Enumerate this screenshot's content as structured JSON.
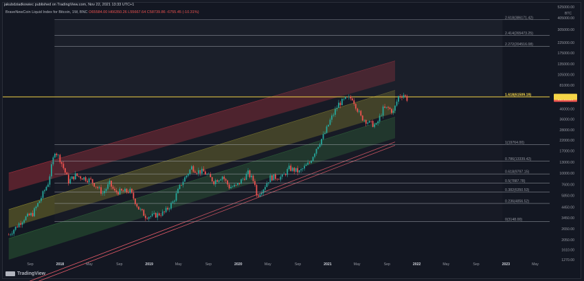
{
  "publisher": "jakubdziadkowiec published on TradingView.com, Nov 22, 2021 13:33 UTC+1",
  "symbol": {
    "name": "BraveNewCoin Liquid Index for Bitcoin, 1W, BNC",
    "open": "O65584.00",
    "high": "H66350.26",
    "low": "L55667.64",
    "close": "C58739.86",
    "change": "-6755.45 (-10.31%)"
  },
  "brand": "TradingView",
  "colors": {
    "up": "#26a69a",
    "down": "#ef5350",
    "fib_line": "#b2b5be",
    "fib_highlight": "#f5d547",
    "price_tag": "#ef5350",
    "band_red": "#b3323f",
    "band_yellow": "#8f8a2d",
    "band_green": "#2f6b3a",
    "background": "#131722"
  },
  "chart_data": {
    "type": "candlestick",
    "title": "BraveNewCoin Liquid Index for Bitcoin, 1W, BNC",
    "y_scale": "log",
    "y_unit": "BTC",
    "ylim": [
      1270,
      525000
    ],
    "y_ticks": [
      "525000.00",
      "405000.00",
      "305000.00",
      "225000.00",
      "175000.00",
      "135000.00",
      "105000.00",
      "81000.00",
      "62000.00",
      "46000.00",
      "36000.00",
      "28000.00",
      "22000.00",
      "17000.00",
      "13000.00",
      "10000.00",
      "7600.00",
      "5850.00",
      "4450.00",
      "3450.00",
      "2650.00",
      "2050.00",
      "1610.00",
      "1270.00"
    ],
    "x_ticks": [
      "Sep",
      "2018",
      "May",
      "Sep",
      "2019",
      "May",
      "Sep",
      "2020",
      "May",
      "Sep",
      "2021",
      "May",
      "Sep",
      "2022",
      "May",
      "Sep",
      "2023",
      "May"
    ],
    "x_tick_dates": [
      "2017-09-01",
      "2018-01-01",
      "2018-05-01",
      "2018-09-01",
      "2019-01-01",
      "2019-05-01",
      "2019-09-01",
      "2020-01-01",
      "2020-05-01",
      "2020-09-01",
      "2021-01-01",
      "2021-05-01",
      "2021-09-01",
      "2022-01-01",
      "2022-05-01",
      "2022-09-01",
      "2023-01-01",
      "2023-05-01"
    ],
    "last_price_label": "58739.86",
    "fib_levels": [
      {
        "label": "0(3148.00)",
        "value": 3148.0
      },
      {
        "label": "0.236(4856.52)",
        "value": 4856.52
      },
      {
        "label": "0.382(6350.53)",
        "value": 6350.53
      },
      {
        "label": "0.5(7887.78)",
        "value": 7887.78
      },
      {
        "label": "0.618(9797.15)",
        "value": 9797.15
      },
      {
        "label": "0.786(13339.42)",
        "value": 13339.42
      },
      {
        "label": "1(19764.00)",
        "value": 19764.0
      },
      {
        "label": "1.618(61509.19)",
        "value": 61509.19,
        "highlight": true
      },
      {
        "label": "2.272(204516.08)",
        "value": 204516.08
      },
      {
        "label": "2.414(265473.25)",
        "value": 265473.25
      },
      {
        "label": "2.618(386171.42)",
        "value": 386171.42
      }
    ],
    "channel": {
      "bands": [
        {
          "color": "red",
          "start": {
            "date": "2017-06-05",
            "upper": 10000,
            "lower": 6500
          },
          "end": {
            "date": "2021-10-04",
            "upper": 145000,
            "lower": 90000
          }
        },
        {
          "color": "yellow",
          "start": {
            "date": "2017-06-05",
            "upper": 4200,
            "lower": 2700
          },
          "end": {
            "date": "2021-10-04",
            "upper": 72000,
            "lower": 42000
          }
        },
        {
          "color": "green",
          "start": {
            "date": "2017-06-05",
            "upper": 2100,
            "lower": 1270
          },
          "end": {
            "date": "2021-10-04",
            "upper": 38000,
            "lower": 23000
          }
        }
      ],
      "support_lines": [
        {
          "start": {
            "date": "2017-06-05",
            "value": 630
          },
          "end": {
            "date": "2021-10-04",
            "value": 21000
          }
        },
        {
          "start": {
            "date": "2017-06-05",
            "value": 580
          },
          "end": {
            "date": "2021-10-04",
            "value": 19400
          }
        }
      ]
    },
    "price_path": [
      {
        "date": "2017-06-05",
        "value": 2300
      },
      {
        "date": "2017-08-07",
        "value": 3400
      },
      {
        "date": "2017-09-11",
        "value": 3800
      },
      {
        "date": "2017-10-16",
        "value": 5600
      },
      {
        "date": "2017-11-13",
        "value": 7900
      },
      {
        "date": "2017-12-11",
        "value": 17000
      },
      {
        "date": "2018-01-01",
        "value": 14000
      },
      {
        "date": "2018-02-05",
        "value": 8200
      },
      {
        "date": "2018-03-05",
        "value": 9500
      },
      {
        "date": "2018-04-09",
        "value": 8900
      },
      {
        "date": "2018-05-07",
        "value": 8400
      },
      {
        "date": "2018-06-25",
        "value": 6200
      },
      {
        "date": "2018-07-23",
        "value": 7800
      },
      {
        "date": "2018-08-13",
        "value": 6400
      },
      {
        "date": "2018-10-15",
        "value": 6500
      },
      {
        "date": "2018-11-19",
        "value": 4300
      },
      {
        "date": "2018-12-17",
        "value": 3600
      },
      {
        "date": "2019-01-14",
        "value": 3600
      },
      {
        "date": "2019-03-04",
        "value": 3900
      },
      {
        "date": "2019-04-08",
        "value": 5000
      },
      {
        "date": "2019-05-13",
        "value": 7800
      },
      {
        "date": "2019-06-24",
        "value": 11500
      },
      {
        "date": "2019-07-15",
        "value": 10500
      },
      {
        "date": "2019-08-12",
        "value": 10300
      },
      {
        "date": "2019-09-23",
        "value": 8200
      },
      {
        "date": "2019-10-28",
        "value": 9300
      },
      {
        "date": "2019-11-25",
        "value": 7200
      },
      {
        "date": "2019-12-23",
        "value": 7300
      },
      {
        "date": "2020-02-10",
        "value": 10000
      },
      {
        "date": "2020-03-09",
        "value": 7900
      },
      {
        "date": "2020-03-16",
        "value": 5800
      },
      {
        "date": "2020-04-13",
        "value": 7000
      },
      {
        "date": "2020-05-11",
        "value": 9000
      },
      {
        "date": "2020-06-29",
        "value": 9100
      },
      {
        "date": "2020-07-27",
        "value": 11200
      },
      {
        "date": "2020-09-07",
        "value": 10300
      },
      {
        "date": "2020-10-19",
        "value": 12800
      },
      {
        "date": "2020-11-16",
        "value": 18200
      },
      {
        "date": "2020-12-21",
        "value": 26000
      },
      {
        "date": "2021-01-11",
        "value": 35000
      },
      {
        "date": "2021-02-15",
        "value": 52000
      },
      {
        "date": "2021-03-15",
        "value": 58000
      },
      {
        "date": "2021-04-12",
        "value": 60000
      },
      {
        "date": "2021-05-17",
        "value": 38000
      },
      {
        "date": "2021-06-21",
        "value": 33000
      },
      {
        "date": "2021-07-19",
        "value": 31000
      },
      {
        "date": "2021-08-16",
        "value": 46000
      },
      {
        "date": "2021-09-06",
        "value": 47000
      },
      {
        "date": "2021-09-27",
        "value": 43000
      },
      {
        "date": "2021-10-18",
        "value": 62000
      },
      {
        "date": "2021-11-08",
        "value": 65000
      },
      {
        "date": "2021-11-22",
        "value": 58739.86
      }
    ]
  }
}
